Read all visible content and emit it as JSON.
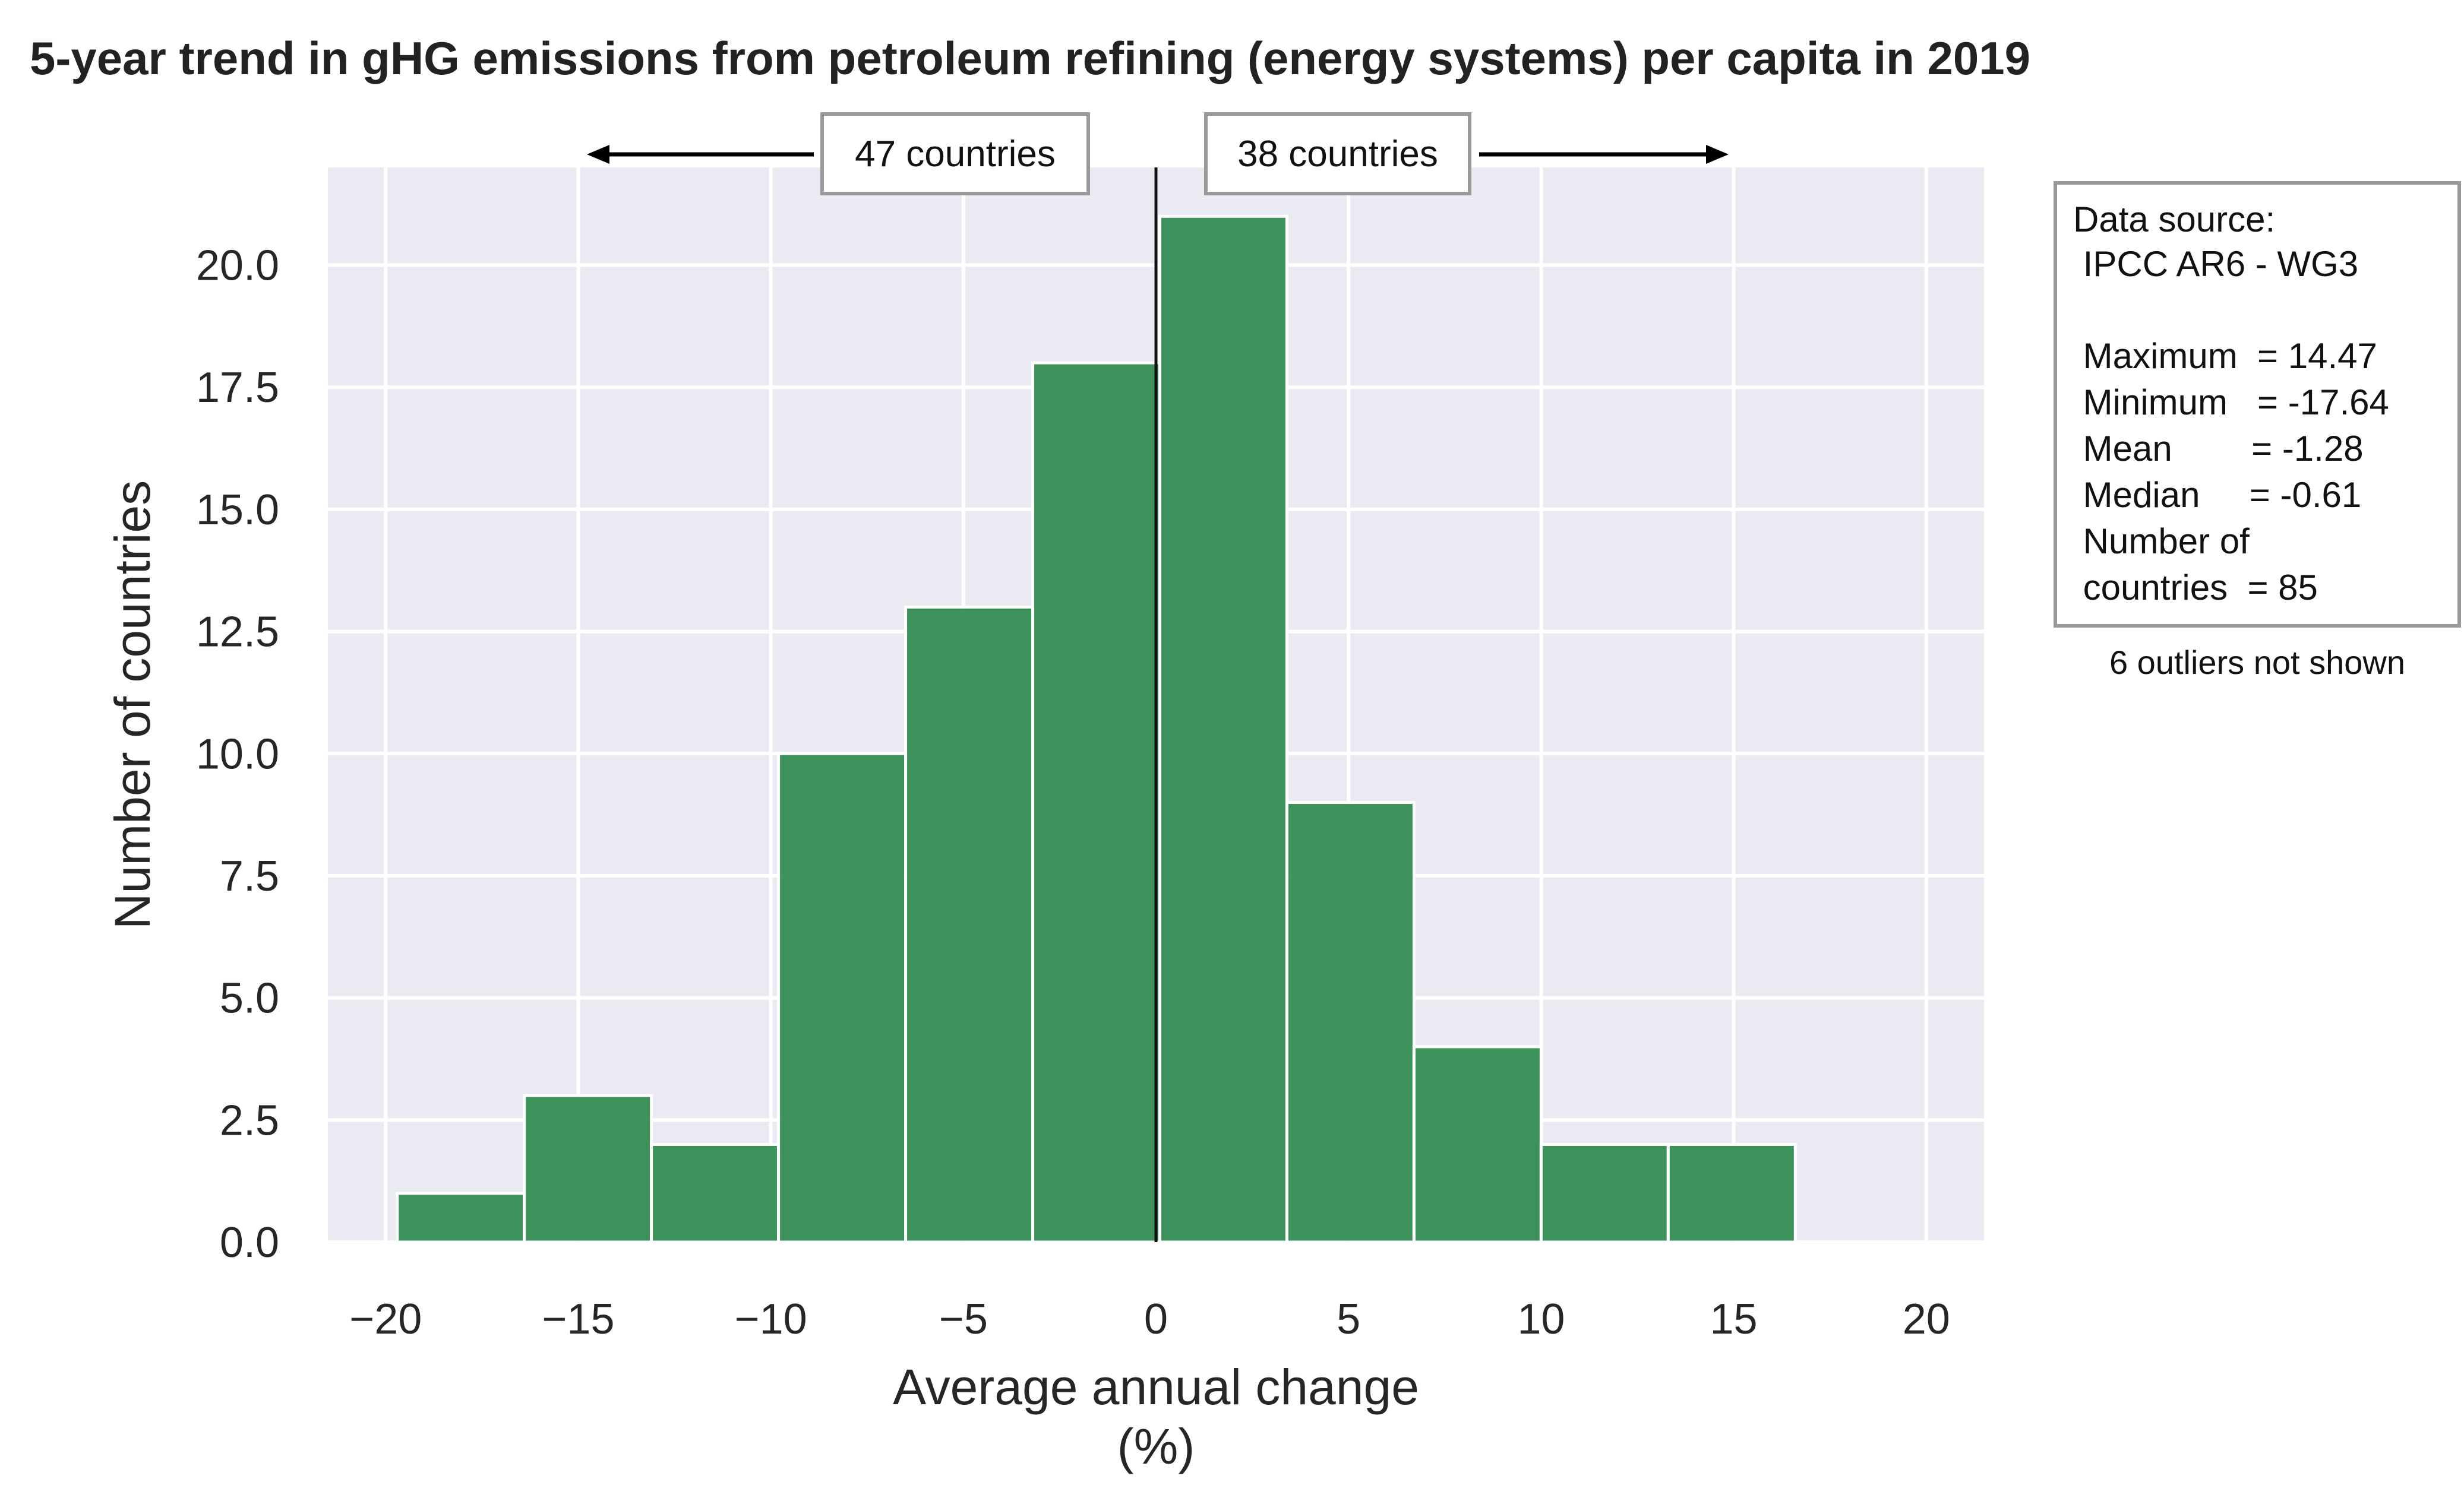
{
  "chart_data": {
    "type": "bar",
    "title": "5-year trend in gHG emissions from petroleum refining (energy systems) per capita in 2019",
    "xlabel": "Average annual change",
    "xlabel_unit": "(%)",
    "ylabel": "Number of countries",
    "xlim": [
      -21.5,
      21.5
    ],
    "ylim": [
      0,
      22
    ],
    "xticks": [
      -20,
      -15,
      -10,
      -5,
      0,
      5,
      10,
      15,
      20
    ],
    "xtick_labels": [
      "−20",
      "−15",
      "−10",
      "−5",
      "0",
      "5",
      "10",
      "15",
      "20"
    ],
    "yticks": [
      0,
      2.5,
      5,
      7.5,
      10,
      12.5,
      15,
      17.5,
      20
    ],
    "ytick_labels": [
      "0.0",
      "2.5",
      "5.0",
      "7.5",
      "10.0",
      "12.5",
      "15.0",
      "17.5",
      "20.0"
    ],
    "grid": true,
    "bins": [
      {
        "x0": -19.7,
        "x1": -16.4,
        "count": 1
      },
      {
        "x0": -16.4,
        "x1": -13.1,
        "count": 3
      },
      {
        "x0": -13.1,
        "x1": -9.8,
        "count": 2
      },
      {
        "x0": -9.8,
        "x1": -6.5,
        "count": 10
      },
      {
        "x0": -6.5,
        "x1": -3.2,
        "count": 13
      },
      {
        "x0": -3.2,
        "x1": 0.1,
        "count": 18
      },
      {
        "x0": 0.1,
        "x1": 3.4,
        "count": 21
      },
      {
        "x0": 3.4,
        "x1": 6.7,
        "count": 9
      },
      {
        "x0": 6.7,
        "x1": 10.0,
        "count": 4
      },
      {
        "x0": 10.0,
        "x1": 13.3,
        "count": 2
      },
      {
        "x0": 13.3,
        "x1": 16.6,
        "count": 2
      }
    ],
    "reference_line_x": 0,
    "bar_color": "#2e8b4f",
    "annotations": {
      "left_label": "47 countries",
      "right_label": "38 countries",
      "left_arrow_to_x": -15,
      "right_arrow_to_x": 15
    }
  },
  "info_box": {
    "source_label": "Data source:",
    "source_value": " IPCC AR6 - WG3",
    "max_line": " Maximum  = 14.47",
    "min_line": " Minimum   = -17.64",
    "mean_line": " Mean        = -1.28",
    "median_line": " Median     = -0.61",
    "count_line1": " Number of",
    "count_line2": " countries  = 85"
  },
  "outliers_note": "6 outliers not shown"
}
